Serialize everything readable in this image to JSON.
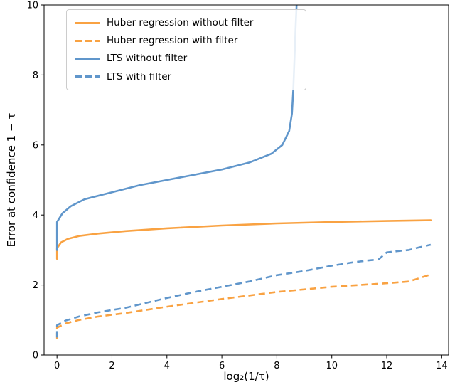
{
  "chart_data": {
    "type": "line",
    "title": "",
    "xlabel": "log₂(1/τ)",
    "ylabel": "Error at confidence 1 − τ",
    "xlim": [
      -0.47,
      14.25
    ],
    "ylim": [
      0,
      10
    ],
    "xticks": [
      0,
      2,
      4,
      6,
      8,
      10,
      12,
      14
    ],
    "yticks": [
      0,
      2,
      4,
      6,
      8,
      10
    ],
    "grid": false,
    "legend_position": "upper left",
    "series": [
      {
        "name": "Huber regression without filter",
        "color": "#f9a242",
        "style": "solid",
        "x": [
          0,
          0,
          0.15,
          0.4,
          0.8,
          1.5,
          2.5,
          4,
          6,
          8,
          10,
          12,
          13.6
        ],
        "y": [
          2.75,
          3.05,
          3.22,
          3.32,
          3.4,
          3.47,
          3.54,
          3.62,
          3.7,
          3.76,
          3.8,
          3.83,
          3.85
        ]
      },
      {
        "name": "Huber regression with filter",
        "color": "#f9a242",
        "style": "dashed",
        "x": [
          0,
          0,
          0.3,
          0.8,
          1.5,
          2.5,
          4,
          6,
          8,
          10,
          11,
          12,
          12.8,
          13.2,
          13.6
        ],
        "y": [
          0.45,
          0.78,
          0.9,
          1.0,
          1.1,
          1.2,
          1.38,
          1.6,
          1.8,
          1.95,
          2.0,
          2.05,
          2.1,
          2.2,
          2.3
        ]
      },
      {
        "name": "LTS without filter",
        "color": "#6096cb",
        "style": "solid",
        "x": [
          0,
          0,
          0.2,
          0.5,
          1,
          2,
          3,
          4,
          5,
          6,
          7,
          7.8,
          8.2,
          8.45,
          8.55,
          8.6,
          8.65,
          8.68,
          8.72
        ],
        "y": [
          3.0,
          3.8,
          4.05,
          4.25,
          4.45,
          4.65,
          4.85,
          5.0,
          5.15,
          5.3,
          5.5,
          5.75,
          6.0,
          6.4,
          6.9,
          7.6,
          8.6,
          9.3,
          10.0
        ]
      },
      {
        "name": "LTS with filter",
        "color": "#6096cb",
        "style": "dashed",
        "x": [
          0,
          0,
          0.3,
          0.8,
          1.5,
          2.5,
          4,
          5,
          6,
          7,
          8,
          9,
          10,
          10.8,
          11.3,
          11.7,
          12,
          12.4,
          12.8,
          13.2,
          13.6
        ],
        "y": [
          0.5,
          0.85,
          0.98,
          1.1,
          1.22,
          1.35,
          1.63,
          1.8,
          1.95,
          2.1,
          2.28,
          2.4,
          2.55,
          2.65,
          2.7,
          2.73,
          2.93,
          2.97,
          3.0,
          3.08,
          3.15
        ]
      }
    ]
  }
}
